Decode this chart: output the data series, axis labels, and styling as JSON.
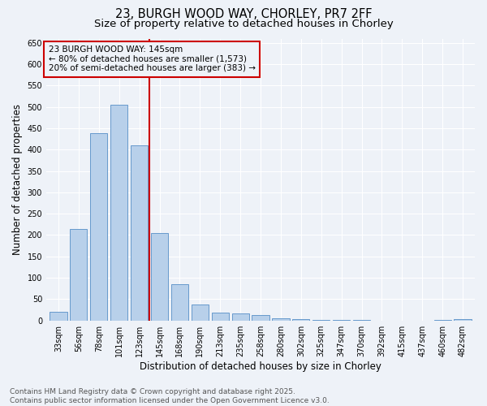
{
  "title_line1": "23, BURGH WOOD WAY, CHORLEY, PR7 2FF",
  "title_line2": "Size of property relative to detached houses in Chorley",
  "xlabel": "Distribution of detached houses by size in Chorley",
  "ylabel": "Number of detached properties",
  "bar_labels": [
    "33sqm",
    "56sqm",
    "78sqm",
    "101sqm",
    "123sqm",
    "145sqm",
    "168sqm",
    "190sqm",
    "213sqm",
    "235sqm",
    "258sqm",
    "280sqm",
    "302sqm",
    "325sqm",
    "347sqm",
    "370sqm",
    "392sqm",
    "415sqm",
    "437sqm",
    "460sqm",
    "482sqm"
  ],
  "bar_values": [
    20,
    215,
    438,
    505,
    410,
    205,
    85,
    38,
    18,
    17,
    12,
    5,
    4,
    2,
    1,
    1,
    0,
    0,
    0,
    1,
    4
  ],
  "bar_color": "#b8d0ea",
  "bar_edge_color": "#6699cc",
  "vline_x_index": 4.5,
  "vline_color": "#cc0000",
  "annotation_text": "23 BURGH WOOD WAY: 145sqm\n← 80% of detached houses are smaller (1,573)\n20% of semi-detached houses are larger (383) →",
  "annotation_box_color": "#cc0000",
  "ylim": [
    0,
    660
  ],
  "yticks": [
    0,
    50,
    100,
    150,
    200,
    250,
    300,
    350,
    400,
    450,
    500,
    550,
    600,
    650
  ],
  "background_color": "#eef2f8",
  "grid_color": "#ffffff",
  "footer_text": "Contains HM Land Registry data © Crown copyright and database right 2025.\nContains public sector information licensed under the Open Government Licence v3.0.",
  "title_fontsize": 10.5,
  "subtitle_fontsize": 9.5,
  "axis_label_fontsize": 8.5,
  "tick_fontsize": 7,
  "annotation_fontsize": 7.5,
  "footer_fontsize": 6.5
}
